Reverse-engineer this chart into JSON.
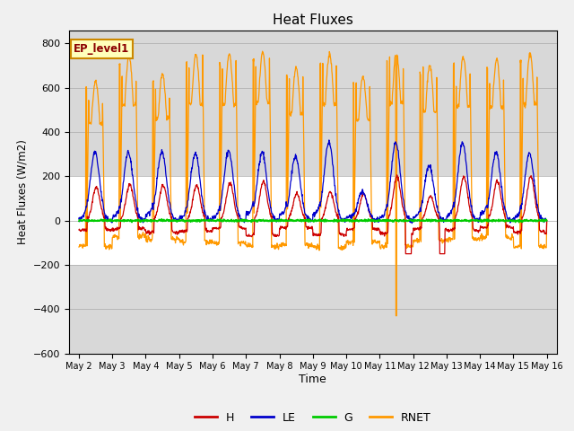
{
  "title": "Heat Fluxes",
  "xlabel": "Time",
  "ylabel": "Heat Fluxes (W/m2)",
  "legend_label": "EP_level1",
  "series_names": [
    "H",
    "LE",
    "G",
    "RNET"
  ],
  "series_colors": [
    "#cc0000",
    "#0000cc",
    "#00cc00",
    "#ff9900"
  ],
  "ylim": [
    -600,
    860
  ],
  "yticks": [
    -600,
    -400,
    -200,
    0,
    200,
    400,
    600,
    800
  ],
  "num_days": 14,
  "points_per_day": 96,
  "start_day": 2,
  "background_color": "#f0f0f0",
  "plot_background": "#ffffff",
  "shade_color": "#d8d8d8",
  "shade_above": 200,
  "shade_below": -200
}
